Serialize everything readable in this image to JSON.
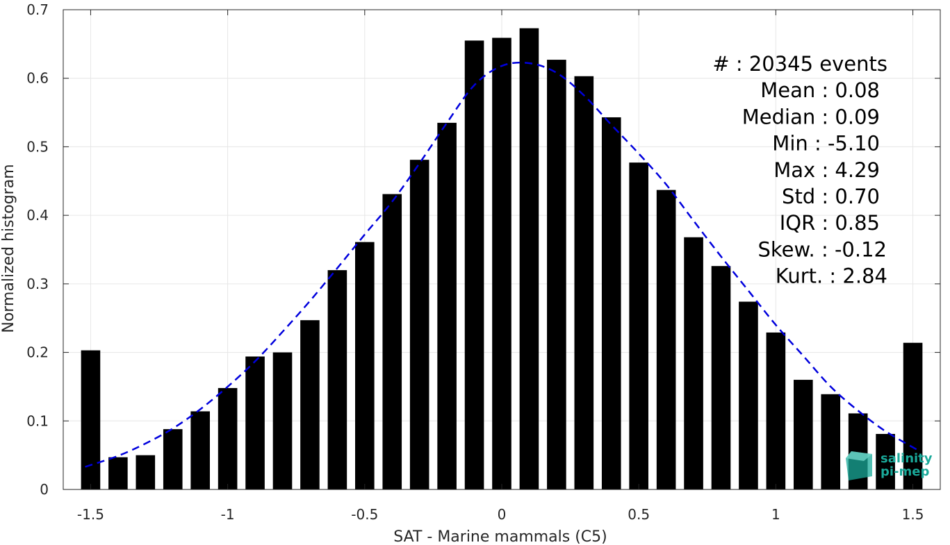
{
  "chart_data": {
    "type": "bar",
    "xlabel": "SAT - Marine mammals (C5)",
    "ylabel": "Normalized histogram",
    "xlim": [
      -1.6,
      1.6
    ],
    "ylim": [
      0,
      0.7
    ],
    "x_ticks": [
      -1.5,
      -1,
      -0.5,
      0,
      0.5,
      1,
      1.5
    ],
    "x_tick_labels": [
      "-1.5",
      "-1",
      "-0.5",
      "0",
      "0.5",
      "1",
      "1.5"
    ],
    "y_ticks": [
      0,
      0.1,
      0.2,
      0.3,
      0.4,
      0.5,
      0.6,
      0.7
    ],
    "y_tick_labels": [
      "0",
      "0.1",
      "0.2",
      "0.3",
      "0.4",
      "0.5",
      "0.6",
      "0.7"
    ],
    "grid": true,
    "bar_color": "#000000",
    "bar_width": 0.07,
    "bars": {
      "x": [
        -1.5,
        -1.4,
        -1.3,
        -1.2,
        -1.1,
        -1.0,
        -0.9,
        -0.8,
        -0.7,
        -0.6,
        -0.5,
        -0.4,
        -0.3,
        -0.2,
        -0.1,
        0.0,
        0.1,
        0.2,
        0.3,
        0.4,
        0.5,
        0.6,
        0.7,
        0.8,
        0.9,
        1.0,
        1.1,
        1.2,
        1.3,
        1.4,
        1.5
      ],
      "values": [
        0.203,
        0.047,
        0.05,
        0.088,
        0.114,
        0.148,
        0.194,
        0.2,
        0.247,
        0.32,
        0.361,
        0.431,
        0.481,
        0.535,
        0.655,
        0.659,
        0.673,
        0.627,
        0.603,
        0.543,
        0.477,
        0.437,
        0.368,
        0.326,
        0.274,
        0.229,
        0.16,
        0.139,
        0.111,
        0.081,
        0.214
      ]
    },
    "fit_curve": {
      "color": "#0000dd",
      "style": "dashed",
      "x": [
        -1.52,
        -1.4,
        -1.3,
        -1.2,
        -1.1,
        -1.0,
        -0.9,
        -0.8,
        -0.7,
        -0.6,
        -0.5,
        -0.4,
        -0.3,
        -0.2,
        -0.1,
        0.0,
        0.1,
        0.2,
        0.3,
        0.4,
        0.5,
        0.6,
        0.7,
        0.8,
        0.9,
        1.0,
        1.1,
        1.2,
        1.3,
        1.4,
        1.52
      ],
      "values": [
        0.033,
        0.049,
        0.067,
        0.089,
        0.117,
        0.15,
        0.187,
        0.23,
        0.275,
        0.323,
        0.372,
        0.42,
        0.476,
        0.535,
        0.59,
        0.618,
        0.622,
        0.608,
        0.575,
        0.532,
        0.49,
        0.445,
        0.392,
        0.34,
        0.29,
        0.24,
        0.195,
        0.15,
        0.115,
        0.085,
        0.057
      ]
    },
    "stats": [
      {
        "label": "#  : 20345 events",
        "align": "end"
      },
      {
        "label": "Mean : 0.08"
      },
      {
        "label": "Median : 0.09"
      },
      {
        "label": "Min : -5.10"
      },
      {
        "label": "Max : 4.29"
      },
      {
        "label": "Std : 0.70"
      },
      {
        "label": "IQR : 0.85"
      },
      {
        "label": "Skew. : -0.12"
      },
      {
        "label": "Kurt. : 2.84"
      }
    ]
  },
  "logo": {
    "line1": "salinity",
    "line2": "pi-mep",
    "color": "#1aa99a"
  }
}
